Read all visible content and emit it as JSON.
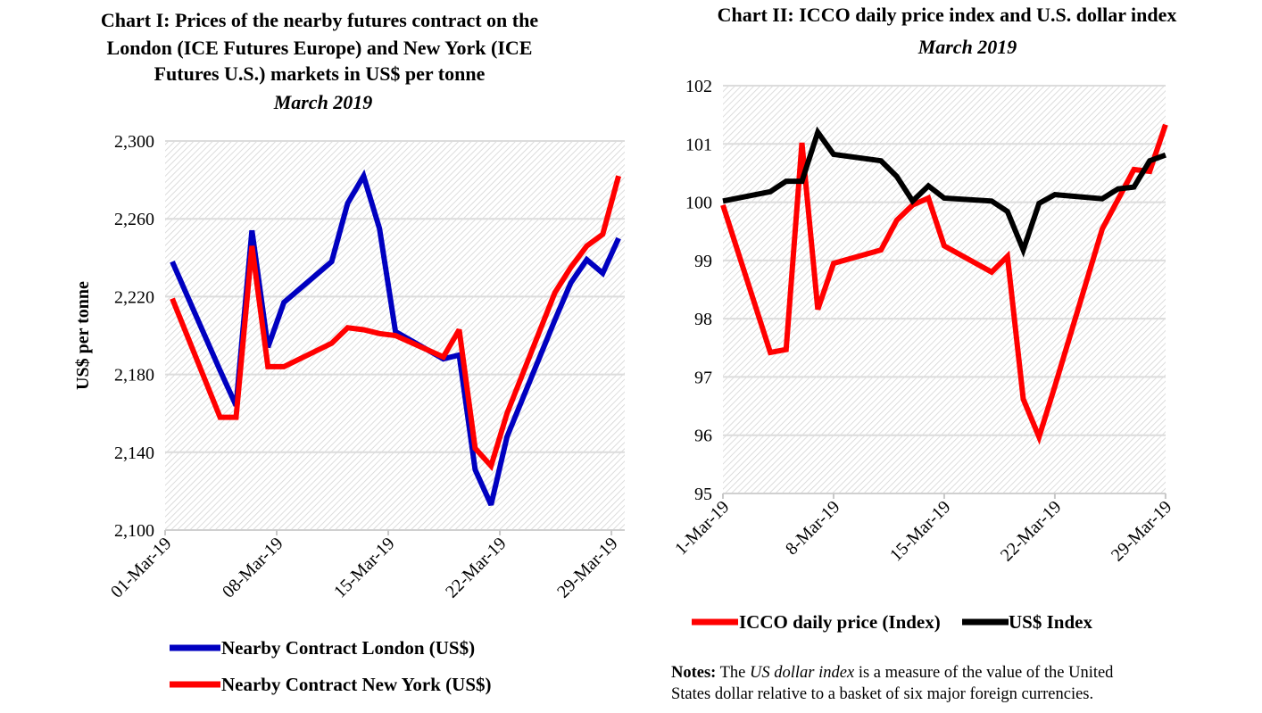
{
  "chart_data": [
    {
      "type": "line",
      "title": "Chart I: Prices of the nearby futures contract on the London (ICE Futures Europe) and New York (ICE Futures U.S.) markets in US$ per tonne",
      "title_lines": [
        "Chart I: Prices of the nearby futures contract on the",
        "London (ICE Futures Europe) and New York (ICE",
        "Futures U.S.) markets in US$ per tonne"
      ],
      "subtitle": "March 2019",
      "ylabel": "US$ per tonne",
      "ylim": [
        2100,
        2300
      ],
      "yticks": [
        2100,
        2140,
        2180,
        2220,
        2260,
        2300
      ],
      "ytick_labels": [
        "2,100",
        "2,140",
        "2,180",
        "2,220",
        "2,260",
        "2,300"
      ],
      "xticks": [
        1,
        8,
        15,
        22,
        29
      ],
      "xtick_labels": [
        "01-Mar-19",
        "08-Mar-19",
        "15-Mar-19",
        "22-Mar-19",
        "29-Mar-19"
      ],
      "grid": true,
      "legend_position": "bottom",
      "x": [
        1,
        4,
        5,
        6,
        7,
        8,
        11,
        12,
        13,
        14,
        15,
        18,
        19,
        20,
        21,
        22,
        25,
        26,
        27,
        28,
        29
      ],
      "series": [
        {
          "name": "Nearby Contract London (US$)",
          "color": "#0000c0",
          "values": [
            2238,
            2182,
            2164,
            2254,
            2194,
            2217,
            2238,
            2268,
            2282,
            2255,
            2202,
            2188,
            2190,
            2131,
            2113,
            2148,
            2208,
            2227,
            2239,
            2232,
            2250
          ]
        },
        {
          "name": "Nearby Contract New York (US$)",
          "color": "#ff0000",
          "values": [
            2219,
            2158,
            2158,
            2246,
            2184,
            2184,
            2196,
            2204,
            2203,
            2201,
            2200,
            2189,
            2203,
            2142,
            2133,
            2160,
            2222,
            2235,
            2246,
            2252,
            2282
          ]
        }
      ]
    },
    {
      "type": "line",
      "title": "Chart II: ICCO daily price index and U.S. dollar index",
      "subtitle": "March 2019",
      "ylim": [
        95,
        102
      ],
      "yticks": [
        95,
        96,
        97,
        98,
        99,
        100,
        101,
        102
      ],
      "ytick_labels": [
        "95",
        "96",
        "97",
        "98",
        "99",
        "100",
        "101",
        "102"
      ],
      "xticks": [
        1,
        8,
        15,
        22,
        29
      ],
      "xtick_labels": [
        "1-Mar-19",
        "8-Mar-19",
        "15-Mar-19",
        "22-Mar-19",
        "29-Mar-19"
      ],
      "grid": true,
      "legend_position": "bottom",
      "x": [
        1,
        4,
        5,
        6,
        7,
        8,
        11,
        12,
        13,
        14,
        15,
        18,
        19,
        20,
        21,
        22,
        25,
        26,
        27,
        28,
        29
      ],
      "series": [
        {
          "name": "ICCO daily price (Index)",
          "color": "#ff0000",
          "values": [
            99.95,
            97.42,
            97.47,
            101.02,
            98.16,
            98.95,
            99.18,
            99.69,
            99.95,
            100.07,
            99.25,
            98.8,
            99.07,
            96.62,
            95.97,
            96.84,
            99.54,
            100.05,
            100.56,
            100.53,
            101.33
          ]
        },
        {
          "name": "US$ Index",
          "color": "#000000",
          "values": [
            100.02,
            100.18,
            100.36,
            100.36,
            101.2,
            100.82,
            100.71,
            100.44,
            100.02,
            100.28,
            100.07,
            100.02,
            99.84,
            99.18,
            99.98,
            100.13,
            100.06,
            100.23,
            100.26,
            100.71,
            100.81
          ]
        }
      ]
    }
  ],
  "notes": {
    "label": "Notes:",
    "pre": " The ",
    "italic": "US dollar index",
    "post": " is a measure of the value of the United",
    "line2": "States dollar relative to a basket of six major foreign currencies."
  }
}
